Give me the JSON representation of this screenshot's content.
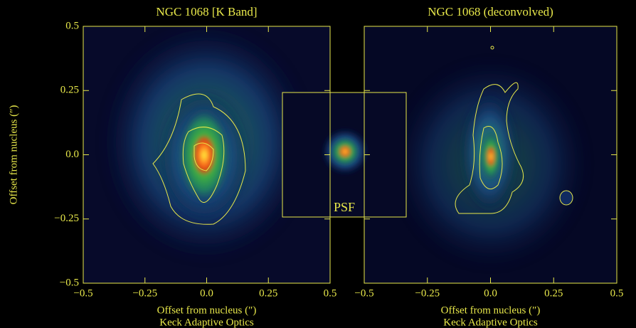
{
  "chart_data": [
    {
      "type": "image",
      "title": "NGC 1068 [K Band]",
      "xlabel": "Offset from nucleus (″)",
      "subtitle": "Keck Adaptive Optics",
      "ylabel": "Offset from nucleus (″)",
      "xlim": [
        -0.5,
        0.5
      ],
      "ylim": [
        -0.5,
        0.5
      ],
      "xticks": [
        {
          "value": -0.5,
          "label": "−0.5"
        },
        {
          "value": -0.25,
          "label": "−0.25"
        },
        {
          "value": 0,
          "label": "0.0"
        },
        0.25,
        0.5
      ],
      "yticks": [
        {
          "value": -0.5,
          "label": "−0.5"
        },
        {
          "value": -0.25,
          "label": "−0.25"
        },
        {
          "value": 0,
          "label": "0.0"
        },
        0.25,
        0.5
      ],
      "color": "#e8e84a"
    },
    {
      "type": "image",
      "title": "NGC 1068 (deconvolved)",
      "xlabel": "Offset from nucleus (″)",
      "subtitle": "Keck Adaptive Optics",
      "xlim": [
        -0.5,
        0.5
      ],
      "xticks": [
        {
          "value": -0.5,
          "label": "−0.5"
        },
        {
          "value": -0.25,
          "label": "−0.25"
        },
        {
          "value": 0,
          "label": "0.0"
        },
        0.25,
        0.5
      ],
      "color": "#e8e84a"
    }
  ],
  "inset": {
    "label": "PSF"
  }
}
